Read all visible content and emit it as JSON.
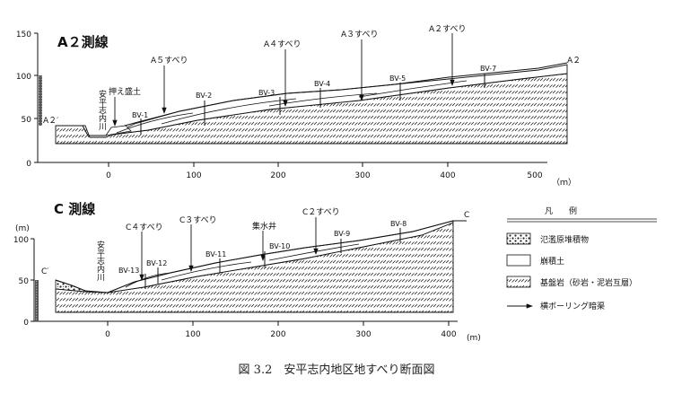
{
  "top_section": {
    "title": "A２測線",
    "y_ticks": [
      "150",
      "100",
      "50",
      "0"
    ],
    "x_ticks": [
      "0",
      "100",
      "200",
      "300",
      "400",
      "500"
    ],
    "x_unit": "（ｍ）",
    "end_left": "A２′",
    "end_right": "A２",
    "river": "安平志内川",
    "fill_label": "押え盛土",
    "slides": [
      "A５すべり",
      "A４すべり",
      "A３すべり",
      "A２すべり"
    ],
    "boreholes": [
      "BV-1",
      "BV-2",
      "BV-3",
      "BV-4",
      "BV-5",
      "BV-7"
    ]
  },
  "bottom_section": {
    "title": "C 測線",
    "y_unit": "(m)",
    "y_ticks": [
      "100",
      "50",
      "0"
    ],
    "x_ticks": [
      "0",
      "100",
      "200",
      "300",
      "400"
    ],
    "x_unit": "(m)",
    "end_left": "C′",
    "end_right": "C",
    "river": "安平志内川",
    "slides": [
      "C４すべり",
      "C３すべり",
      "C２すべり"
    ],
    "well": "集水井",
    "boreholes": [
      "BV-13",
      "BV-12",
      "BV-11",
      "BV-10",
      "BV-9",
      "BV-8"
    ]
  },
  "legend": {
    "title": "凡　　例",
    "items": [
      {
        "pattern": "flood",
        "label": "氾濫原堆積物"
      },
      {
        "pattern": "colluvium",
        "label": "崩積土"
      },
      {
        "pattern": "bedrock",
        "label": "基盤岩（砂岩・泥岩互層）"
      },
      {
        "pattern": "arrow",
        "label": "横ボーリング暗渠"
      }
    ]
  },
  "caption": "図 3.2　安平志内地区地すべり断面図"
}
